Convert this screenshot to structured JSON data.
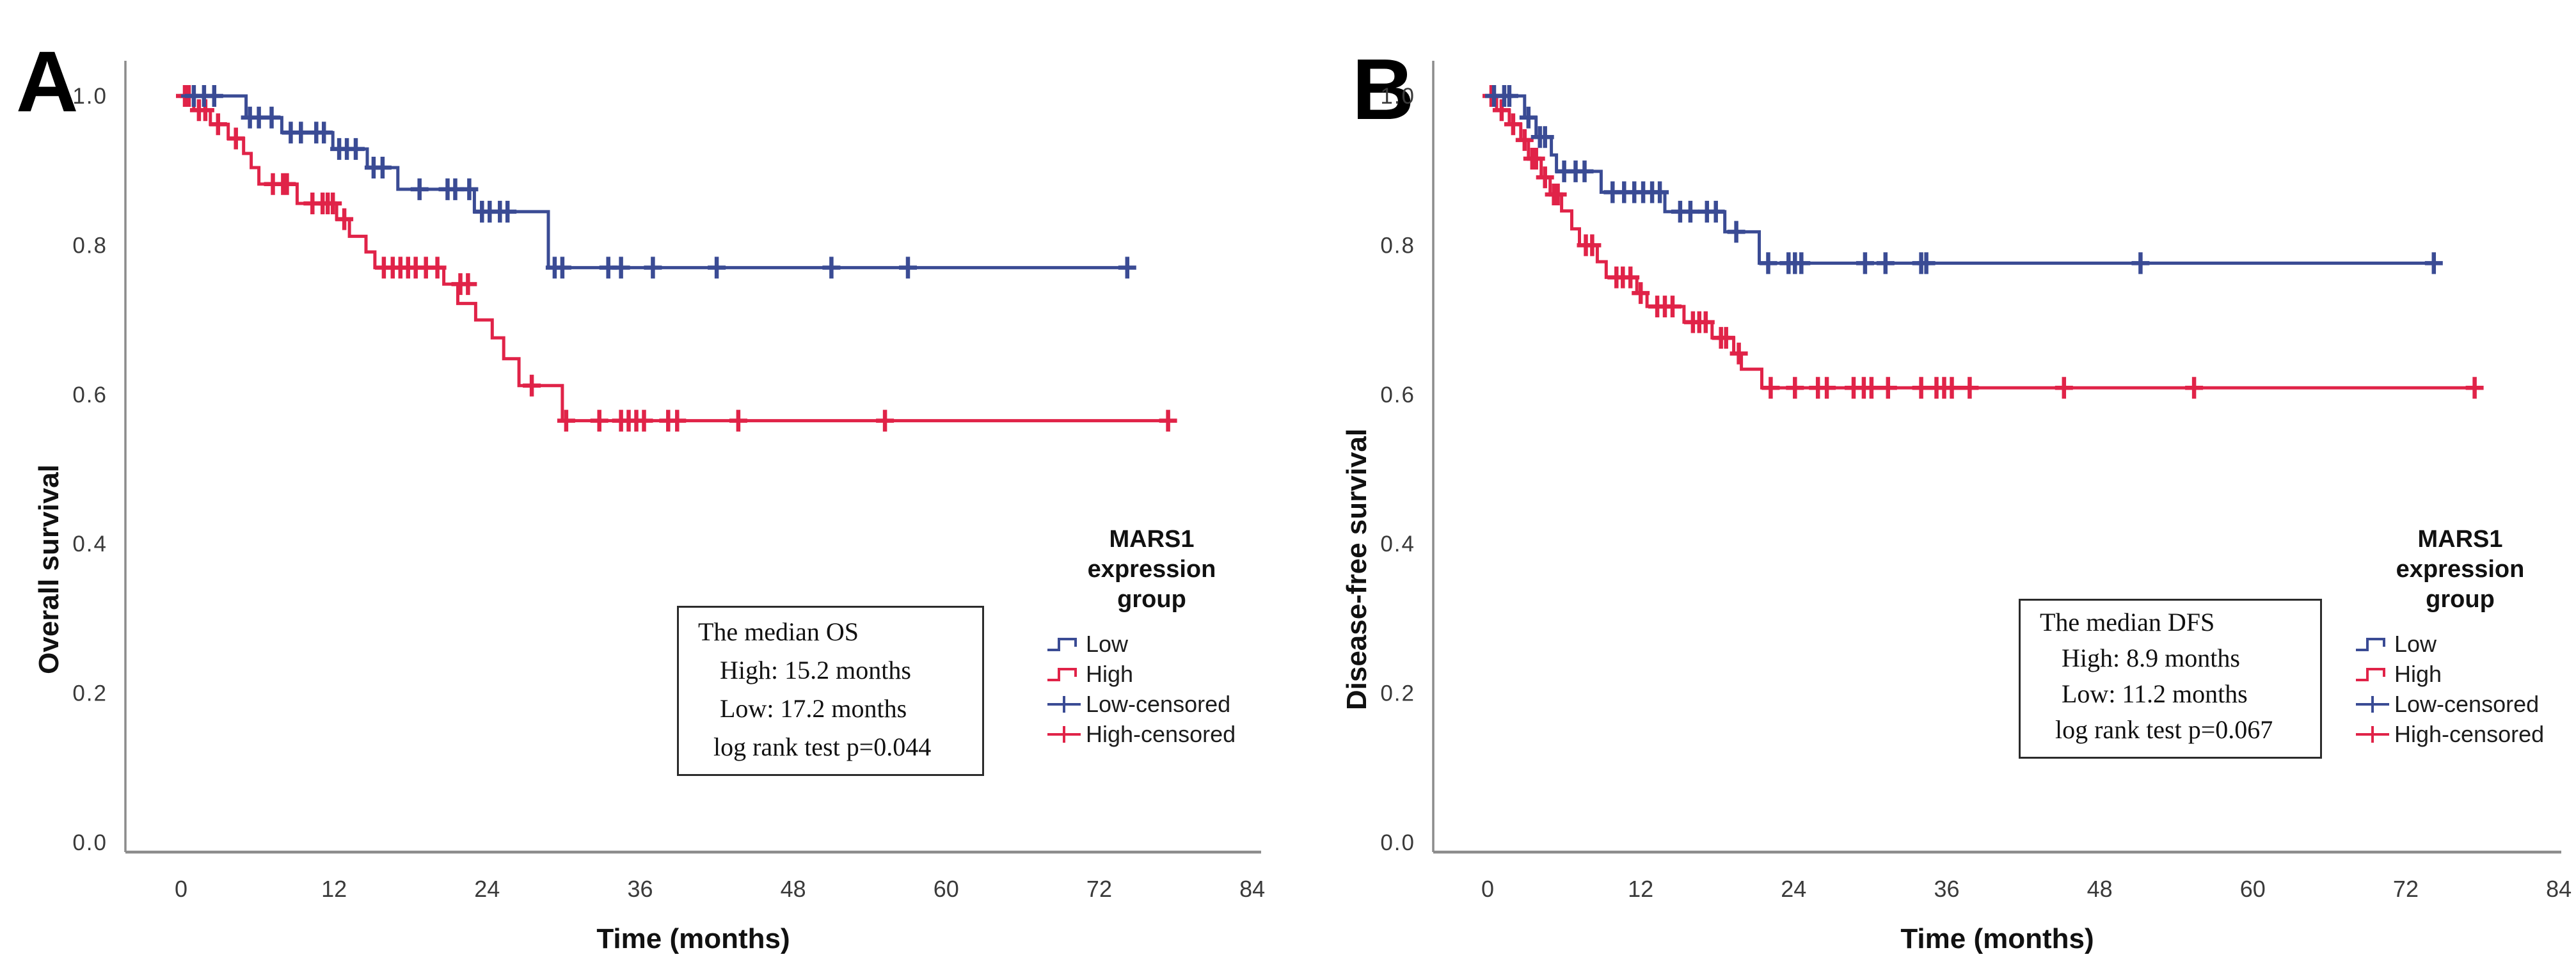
{
  "figure": {
    "background": "#FFFFFF",
    "description": "Two Kaplan-Meier survival plots by MARS1 expression group"
  },
  "colors": {
    "low_line": "#3A4B94",
    "high_line": "#E02348",
    "axis_line": "#8C8C8C",
    "tick_text": "#3A3A3A",
    "label_text": "#111111",
    "annotation_border": "#2B2B2B",
    "background": "#FFFFFF"
  },
  "chart_data": [
    {
      "panel": "A",
      "type": "line",
      "subtype": "kaplan-meier-step",
      "xlabel": "Time (months)",
      "ylabel": "Overall survival",
      "xlim": [
        0,
        84
      ],
      "xticks": [
        0,
        12,
        24,
        36,
        48,
        60,
        72,
        84
      ],
      "ylim": [
        0.0,
        1.0
      ],
      "yticks": [
        0.0,
        0.2,
        0.4,
        0.6,
        0.8,
        1.0
      ],
      "grid": false,
      "legend": {
        "title": "MARS1 expression group",
        "position": "right",
        "entries": [
          "Low",
          "High",
          "Low-censored",
          "High-censored"
        ]
      },
      "annotation": {
        "lines": [
          "The median OS",
          "High: 15.2 months",
          "Low: 17.2 months",
          "log rank test p=0.044"
        ]
      },
      "series": [
        {
          "name": "Low",
          "color_key": "low_line",
          "steps": [
            [
              0,
              1.0
            ],
            [
              5.1,
              0.971
            ],
            [
              7.9,
              0.951
            ],
            [
              11.9,
              0.929
            ],
            [
              14.6,
              0.904
            ],
            [
              17.0,
              0.875
            ],
            [
              23.0,
              0.845
            ],
            [
              28.8,
              0.77
            ]
          ],
          "end": 74.2,
          "censors": [
            [
              1.0,
              1.0
            ],
            [
              1.8,
              1.0
            ],
            [
              2.6,
              1.0
            ],
            [
              5.4,
              0.971
            ],
            [
              6.1,
              0.971
            ],
            [
              7.1,
              0.971
            ],
            [
              8.6,
              0.951
            ],
            [
              9.4,
              0.951
            ],
            [
              10.6,
              0.951
            ],
            [
              11.2,
              0.951
            ],
            [
              12.4,
              0.929
            ],
            [
              13.0,
              0.929
            ],
            [
              13.7,
              0.929
            ],
            [
              15.1,
              0.904
            ],
            [
              15.8,
              0.904
            ],
            [
              18.7,
              0.875
            ],
            [
              20.9,
              0.875
            ],
            [
              21.5,
              0.875
            ],
            [
              22.6,
              0.875
            ],
            [
              23.6,
              0.845
            ],
            [
              24.2,
              0.845
            ],
            [
              25.0,
              0.845
            ],
            [
              25.6,
              0.845
            ],
            [
              29.3,
              0.77
            ],
            [
              29.9,
              0.77
            ],
            [
              33.5,
              0.77
            ],
            [
              34.5,
              0.77
            ],
            [
              37.0,
              0.77
            ],
            [
              42.0,
              0.77
            ],
            [
              51.0,
              0.77
            ],
            [
              57.0,
              0.77
            ],
            [
              74.2,
              0.77
            ]
          ]
        },
        {
          "name": "High",
          "color_key": "high_line",
          "steps": [
            [
              0,
              1.0
            ],
            [
              1.0,
              0.981
            ],
            [
              2.3,
              0.962
            ],
            [
              3.7,
              0.943
            ],
            [
              4.9,
              0.923
            ],
            [
              5.5,
              0.904
            ],
            [
              6.1,
              0.882
            ],
            [
              9.1,
              0.856
            ],
            [
              12.2,
              0.835
            ],
            [
              13.2,
              0.812
            ],
            [
              14.5,
              0.791
            ],
            [
              15.2,
              0.77
            ],
            [
              20.6,
              0.748
            ],
            [
              21.7,
              0.722
            ],
            [
              23.1,
              0.7
            ],
            [
              24.4,
              0.676
            ],
            [
              25.3,
              0.648
            ],
            [
              26.5,
              0.612
            ],
            [
              29.9,
              0.565
            ]
          ],
          "end": 77.4,
          "censors": [
            [
              0.3,
              1.0
            ],
            [
              0.6,
              1.0
            ],
            [
              1.4,
              0.981
            ],
            [
              1.9,
              0.981
            ],
            [
              2.9,
              0.962
            ],
            [
              4.3,
              0.943
            ],
            [
              7.2,
              0.882
            ],
            [
              8.0,
              0.882
            ],
            [
              8.3,
              0.882
            ],
            [
              10.3,
              0.856
            ],
            [
              11.1,
              0.856
            ],
            [
              11.5,
              0.856
            ],
            [
              11.9,
              0.856
            ],
            [
              12.8,
              0.835
            ],
            [
              15.9,
              0.77
            ],
            [
              16.6,
              0.77
            ],
            [
              17.2,
              0.77
            ],
            [
              17.8,
              0.77
            ],
            [
              18.4,
              0.77
            ],
            [
              19.2,
              0.77
            ],
            [
              20.1,
              0.77
            ],
            [
              21.9,
              0.748
            ],
            [
              22.5,
              0.748
            ],
            [
              27.5,
              0.612
            ],
            [
              30.2,
              0.565
            ],
            [
              32.8,
              0.565
            ],
            [
              34.5,
              0.565
            ],
            [
              35.1,
              0.565
            ],
            [
              35.7,
              0.565
            ],
            [
              36.3,
              0.565
            ],
            [
              38.2,
              0.565
            ],
            [
              38.9,
              0.565
            ],
            [
              43.7,
              0.565
            ],
            [
              55.2,
              0.565
            ],
            [
              77.4,
              0.565
            ]
          ]
        }
      ]
    },
    {
      "panel": "B",
      "type": "line",
      "subtype": "kaplan-meier-step",
      "xlabel": "Time (months)",
      "ylabel": "Disease-free survival",
      "xlim": [
        0,
        84
      ],
      "xticks": [
        0,
        12,
        24,
        36,
        48,
        60,
        72,
        84
      ],
      "ylim": [
        0.0,
        1.0
      ],
      "yticks": [
        0.0,
        0.2,
        0.4,
        0.6,
        0.8,
        1.0
      ],
      "grid": false,
      "legend": {
        "title": "MARS1 expression group",
        "position": "right",
        "entries": [
          "Low",
          "High",
          "Low-censored",
          "High-censored"
        ]
      },
      "annotation": {
        "lines": [
          "The median DFS",
          "High: 8.9 months",
          "Low: 11.2 months",
          "log rank test p=0.067"
        ]
      },
      "series": [
        {
          "name": "Low",
          "color_key": "low_line",
          "steps": [
            [
              0,
              1.0
            ],
            [
              2.9,
              0.971
            ],
            [
              3.8,
              0.945
            ],
            [
              5.0,
              0.921
            ],
            [
              5.4,
              0.899
            ],
            [
              8.9,
              0.871
            ],
            [
              13.9,
              0.845
            ],
            [
              18.6,
              0.818
            ],
            [
              21.3,
              0.776
            ]
          ],
          "end": 74.2,
          "censors": [
            [
              0.5,
              1.0
            ],
            [
              1.3,
              1.0
            ],
            [
              1.7,
              1.0
            ],
            [
              3.2,
              0.971
            ],
            [
              4.1,
              0.945
            ],
            [
              4.5,
              0.945
            ],
            [
              6.0,
              0.899
            ],
            [
              6.9,
              0.899
            ],
            [
              7.6,
              0.899
            ],
            [
              9.8,
              0.871
            ],
            [
              10.7,
              0.871
            ],
            [
              11.5,
              0.871
            ],
            [
              12.2,
              0.871
            ],
            [
              12.9,
              0.871
            ],
            [
              13.5,
              0.871
            ],
            [
              15.1,
              0.845
            ],
            [
              15.9,
              0.845
            ],
            [
              17.2,
              0.845
            ],
            [
              17.9,
              0.845
            ],
            [
              19.5,
              0.818
            ],
            [
              22.0,
              0.776
            ],
            [
              23.6,
              0.776
            ],
            [
              24.1,
              0.776
            ],
            [
              24.6,
              0.776
            ],
            [
              29.6,
              0.776
            ],
            [
              31.2,
              0.776
            ],
            [
              34.0,
              0.776
            ],
            [
              34.4,
              0.776
            ],
            [
              51.2,
              0.776
            ],
            [
              74.2,
              0.776
            ]
          ]
        },
        {
          "name": "High",
          "color_key": "high_line",
          "steps": [
            [
              0,
              1.0
            ],
            [
              0.7,
              0.981
            ],
            [
              1.7,
              0.962
            ],
            [
              2.6,
              0.941
            ],
            [
              3.2,
              0.916
            ],
            [
              4.2,
              0.891
            ],
            [
              4.9,
              0.868
            ],
            [
              5.8,
              0.846
            ],
            [
              6.6,
              0.822
            ],
            [
              7.2,
              0.8
            ],
            [
              8.6,
              0.778
            ],
            [
              9.3,
              0.757
            ],
            [
              11.7,
              0.736
            ],
            [
              12.5,
              0.718
            ],
            [
              15.4,
              0.697
            ],
            [
              17.6,
              0.676
            ],
            [
              19.3,
              0.655
            ],
            [
              19.9,
              0.634
            ],
            [
              21.5,
              0.609
            ]
          ],
          "end": 77.4,
          "censors": [
            [
              0.3,
              1.0
            ],
            [
              1.1,
              0.981
            ],
            [
              2.0,
              0.962
            ],
            [
              2.9,
              0.941
            ],
            [
              3.5,
              0.916
            ],
            [
              3.8,
              0.916
            ],
            [
              4.5,
              0.891
            ],
            [
              5.2,
              0.868
            ],
            [
              5.5,
              0.868
            ],
            [
              7.7,
              0.8
            ],
            [
              8.2,
              0.8
            ],
            [
              10.1,
              0.757
            ],
            [
              10.6,
              0.757
            ],
            [
              11.2,
              0.757
            ],
            [
              12.0,
              0.736
            ],
            [
              13.3,
              0.718
            ],
            [
              13.9,
              0.718
            ],
            [
              14.5,
              0.718
            ],
            [
              16.1,
              0.697
            ],
            [
              16.6,
              0.697
            ],
            [
              17.1,
              0.697
            ],
            [
              18.3,
              0.676
            ],
            [
              18.7,
              0.676
            ],
            [
              19.7,
              0.655
            ],
            [
              22.2,
              0.609
            ],
            [
              24.1,
              0.609
            ],
            [
              25.9,
              0.609
            ],
            [
              26.6,
              0.609
            ],
            [
              28.7,
              0.609
            ],
            [
              29.5,
              0.609
            ],
            [
              30.1,
              0.609
            ],
            [
              31.4,
              0.609
            ],
            [
              34.0,
              0.609
            ],
            [
              35.2,
              0.609
            ],
            [
              35.8,
              0.609
            ],
            [
              36.4,
              0.609
            ],
            [
              37.8,
              0.609
            ],
            [
              45.2,
              0.609
            ],
            [
              55.4,
              0.609
            ],
            [
              77.4,
              0.609
            ]
          ]
        }
      ]
    }
  ]
}
